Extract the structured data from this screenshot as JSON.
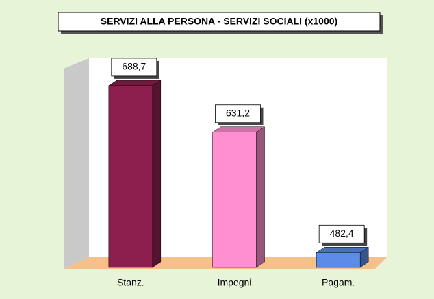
{
  "chart_data": {
    "type": "bar",
    "title": "SERVIZI ALLA PERSONA - SERVIZI SOCIALI (x1000)",
    "categories": [
      "Stanz.",
      "Impegni",
      "Pagam."
    ],
    "values": [
      688.7,
      631.2,
      482.4
    ],
    "value_labels": [
      "688,7",
      "631,2",
      "482,4"
    ],
    "colors": [
      "#8c1f4e",
      "#ff8fd0",
      "#5b8ce8"
    ],
    "ylim": [
      464,
      720
    ]
  }
}
